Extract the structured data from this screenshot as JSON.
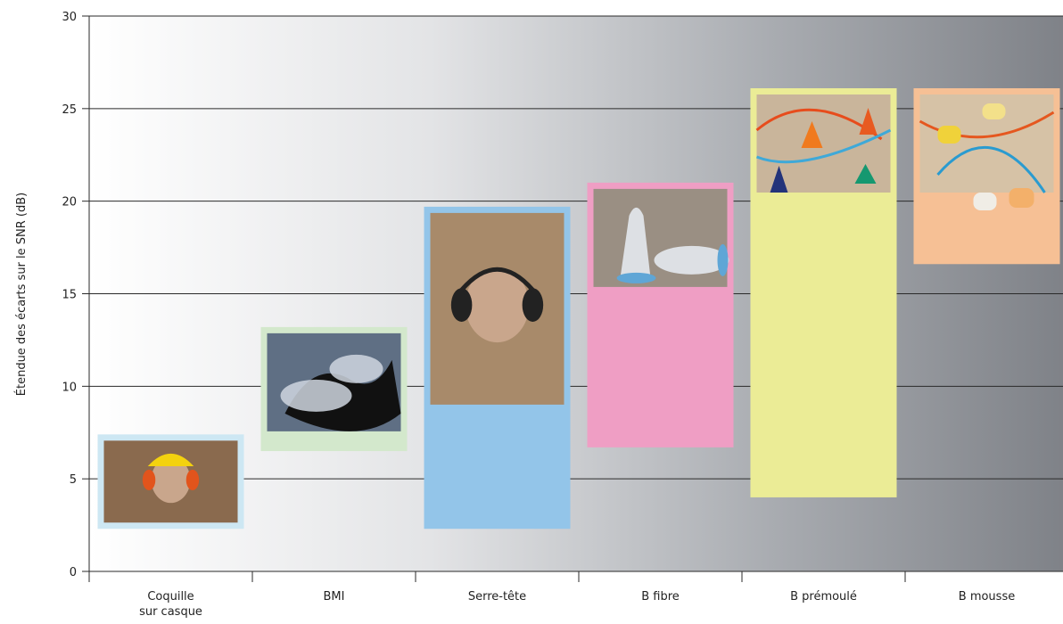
{
  "chart_data": {
    "type": "bar",
    "subtype": "floating-range",
    "title": "",
    "xlabel": "",
    "ylabel": "Étendue des écarts sur le SNR (dB)",
    "ylim": [
      0,
      30
    ],
    "yticks": [
      0,
      5,
      10,
      15,
      20,
      25,
      30
    ],
    "grid": true,
    "legend": "none",
    "categories": [
      {
        "label": [
          "Coquille",
          "sur casque"
        ],
        "low": 2.3,
        "high": 7.4,
        "color": "#cde7f3",
        "border": "#cde7f3",
        "image": "helmet-mounted-earmuff-photo"
      },
      {
        "label": [
          "BMI"
        ],
        "low": 6.5,
        "high": 13.2,
        "color": "#d3e8cc",
        "border": "#d3e8cc",
        "image": "custom-molded-earplug-photo"
      },
      {
        "label": [
          "Serre-tête"
        ],
        "low": 2.3,
        "high": 19.7,
        "color": "#93c5e9",
        "border": "#93c5e9",
        "image": "headband-earmuff-photo"
      },
      {
        "label": [
          "B fibre"
        ],
        "low": 6.7,
        "high": 21.0,
        "color": "#ef9ec4",
        "border": "#ef9ec4",
        "image": "fiber-earplug-photo"
      },
      {
        "label": [
          "B prémoulé"
        ],
        "low": 4.0,
        "high": 26.1,
        "color": "#ebec96",
        "border": "#ebec96",
        "image": "premolded-earplug-photo"
      },
      {
        "label": [
          "B mousse"
        ],
        "low": 16.6,
        "high": 26.1,
        "color": "#f6c095",
        "border": "#f6c095",
        "image": "foam-earplug-photo"
      }
    ]
  }
}
